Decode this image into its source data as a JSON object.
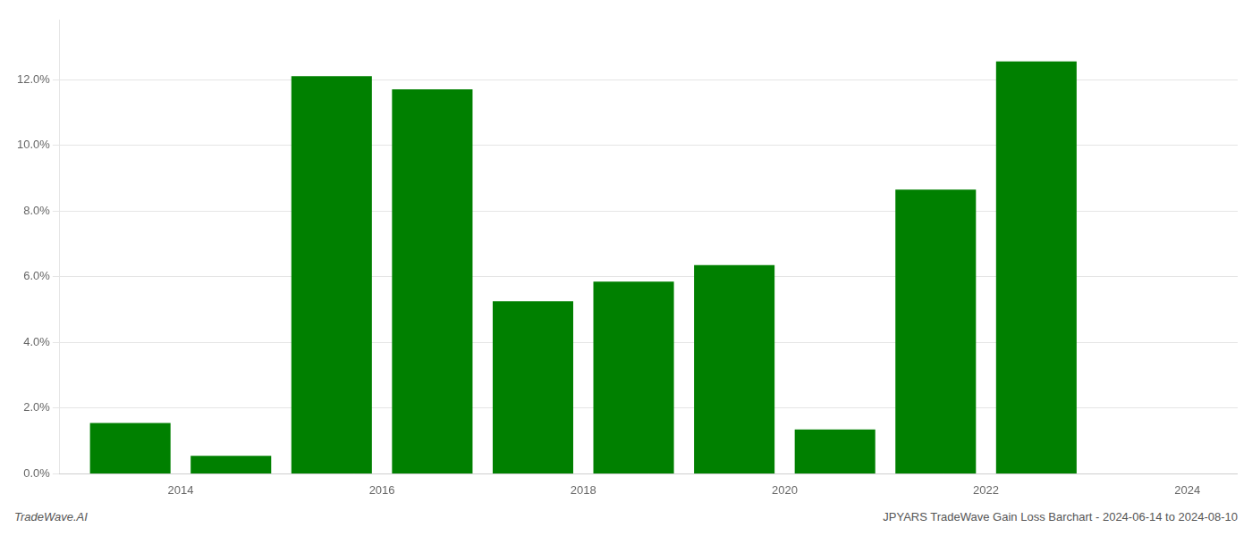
{
  "chart_data": {
    "type": "bar",
    "x": [
      2014,
      2015,
      2016,
      2017,
      2018,
      2019,
      2020,
      2021,
      2022,
      2023
    ],
    "values": [
      0.0155,
      0.0055,
      0.121,
      0.117,
      0.0525,
      0.0585,
      0.0635,
      0.0135,
      0.0865,
      0.1255
    ],
    "color": "#008000",
    "xlim": [
      2013.3,
      2025.0
    ],
    "xticks": [
      {
        "value": 2014.5,
        "label": "2014"
      },
      {
        "value": 2016.5,
        "label": "2016"
      },
      {
        "value": 2018.5,
        "label": "2018"
      },
      {
        "value": 2020.5,
        "label": "2020"
      },
      {
        "value": 2022.5,
        "label": "2022"
      },
      {
        "value": 2024.5,
        "label": "2024"
      }
    ],
    "ylim": [
      0.0,
      0.138
    ],
    "yticks": [
      {
        "value": 0.0,
        "label": "0.0%"
      },
      {
        "value": 0.02,
        "label": "2.0%"
      },
      {
        "value": 0.04,
        "label": "4.0%"
      },
      {
        "value": 0.06,
        "label": "6.0%"
      },
      {
        "value": 0.08,
        "label": "8.0%"
      },
      {
        "value": 0.1,
        "label": "10.0%"
      },
      {
        "value": 0.12,
        "label": "12.0%"
      }
    ],
    "grid": "y",
    "annotations": [
      "TradeWave.AI",
      "JPYARS TradeWave Gain Loss Barchart - 2024-06-14 to 2024-08-10"
    ]
  }
}
